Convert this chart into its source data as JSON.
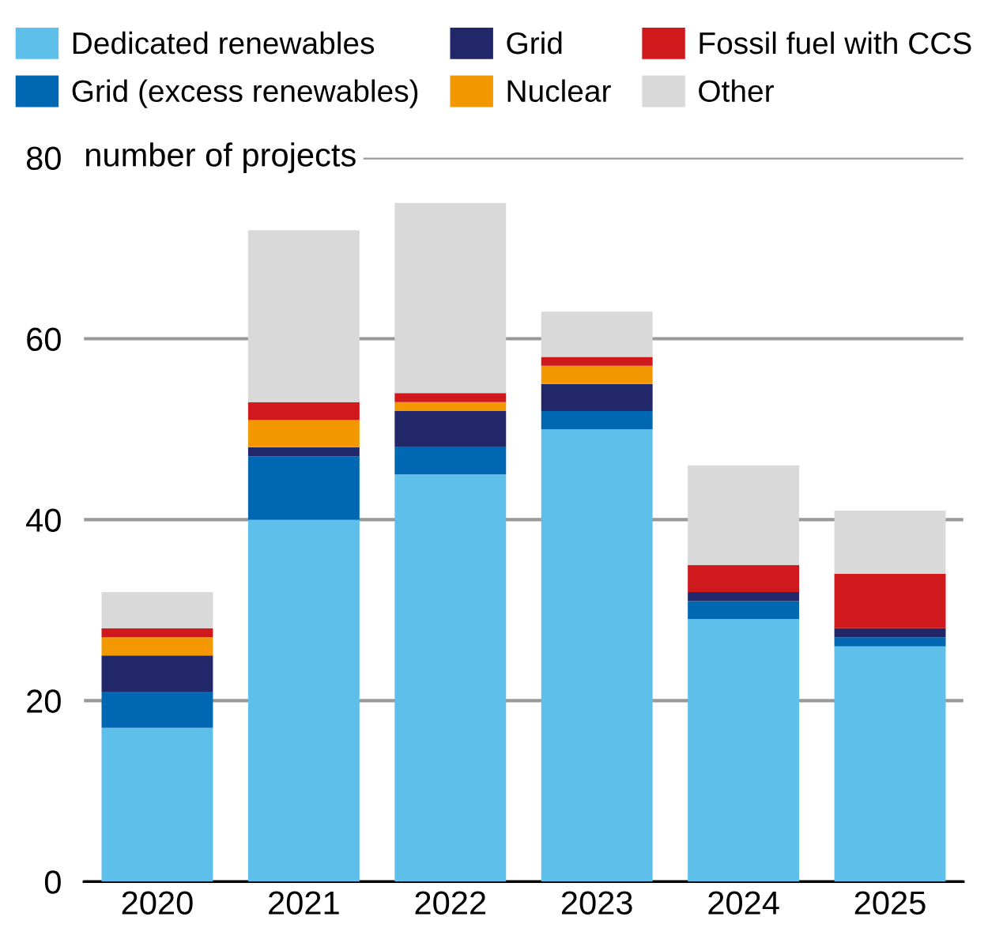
{
  "chart_data": {
    "type": "bar",
    "stacked": true,
    "ylabel": "number of projects",
    "categories": [
      "2020",
      "2021",
      "2022",
      "2023",
      "2024",
      "2025"
    ],
    "series": [
      {
        "name": "Dedicated renewables",
        "color": "#5fbfeb",
        "values": [
          17,
          40,
          45,
          50,
          29,
          26
        ]
      },
      {
        "name": "Grid (excess renewables)",
        "color": "#0068b3",
        "values": [
          4,
          7,
          3,
          2,
          2,
          1
        ]
      },
      {
        "name": "Grid",
        "color": "#22276a",
        "values": [
          4,
          1,
          4,
          3,
          1,
          1
        ]
      },
      {
        "name": "Nuclear",
        "color": "#f39800",
        "values": [
          2,
          3,
          1,
          2,
          0,
          0
        ]
      },
      {
        "name": "Fossil fuel with CCS",
        "color": "#d0191c",
        "values": [
          1,
          2,
          1,
          1,
          3,
          6
        ]
      },
      {
        "name": "Other",
        "color": "#d9d9d9",
        "values": [
          4,
          19,
          21,
          5,
          11,
          7
        ]
      }
    ],
    "ylim": [
      0,
      80
    ],
    "yticks": [
      0,
      20,
      40,
      60,
      80
    ],
    "grid": "y",
    "legend": "top"
  }
}
